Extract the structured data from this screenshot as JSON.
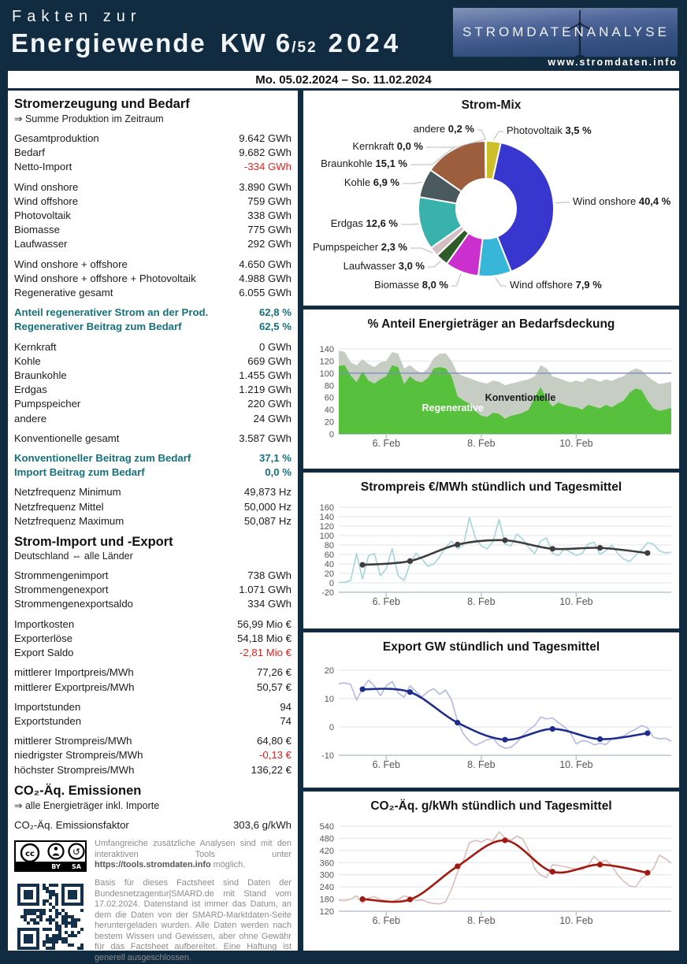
{
  "page": {
    "frame_color": "#112b40",
    "accent_teal": "#16717c",
    "negative_red": "#e8211d"
  },
  "header": {
    "title_line1": "Fakten zur",
    "title_line2": "Energiewende",
    "kw": "KW 6",
    "kw_denominator": "/52",
    "year": "2024",
    "logo_left": "STROMDATEN",
    "logo_right": "ANALYSE",
    "logo_url": "www.stromdaten.info"
  },
  "date_bar": {
    "text": "Mo. 05.02.2024 – So. 11.02.2024"
  },
  "left_panel": {
    "sections": [
      {
        "title": "Stromerzeugung und Bedarf",
        "subtitle": "⇒ Summe Produktion im Zeitraum",
        "groups": [
          [
            {
              "l": "Gesamtproduktion",
              "v": "9.642 GWh"
            },
            {
              "l": "Bedarf",
              "v": "9.682 GWh"
            },
            {
              "l": "Netto-Import",
              "v": "-334 GWh",
              "c": "red"
            }
          ],
          [
            {
              "l": "Wind onshore",
              "v": "3.890 GWh"
            },
            {
              "l": "Wind offshore",
              "v": "759 GWh"
            },
            {
              "l": "Photovoltaik",
              "v": "338 GWh"
            },
            {
              "l": "Biomasse",
              "v": "775 GWh"
            },
            {
              "l": "Laufwasser",
              "v": "292 GWh"
            }
          ],
          [
            {
              "l": "Wind onshore + offshore",
              "v": "4.650 GWh"
            },
            {
              "l": "Wind onshore + offshore + Photovoltaik",
              "v": "4.988 GWh"
            },
            {
              "l": "Regenerative gesamt",
              "v": "6.055 GWh"
            }
          ],
          [
            {
              "l": "Anteil regenerativer Strom an der Prod.",
              "v": "62,8 %",
              "c": "teal"
            },
            {
              "l": "Regenerativer Beitrag zum Bedarf",
              "v": "62,5 %",
              "c": "teal"
            }
          ],
          [
            {
              "l": "Kernkraft",
              "v": "0 GWh"
            },
            {
              "l": "Kohle",
              "v": "669 GWh"
            },
            {
              "l": "Braunkohle",
              "v": "1.455 GWh"
            },
            {
              "l": "Erdgas",
              "v": "1.219 GWh"
            },
            {
              "l": "Pumpspeicher",
              "v": "220 GWh"
            },
            {
              "l": "andere",
              "v": "24 GWh"
            }
          ],
          [
            {
              "l": "Konventionelle gesamt",
              "v": "3.587 GWh"
            }
          ],
          [
            {
              "l": "Konventioneller Beitrag zum Bedarf",
              "v": "37,1 %",
              "c": "teal"
            },
            {
              "l": "Import Beitrag zum Bedarf",
              "v": "0,0 %",
              "c": "teal"
            }
          ],
          [
            {
              "l": "Netzfrequenz Minimum",
              "v": "49,873 Hz"
            },
            {
              "l": "Netzfrequenz Mittel",
              "v": "50,000 Hz"
            },
            {
              "l": "Netzfrequenz Maximum",
              "v": "50,087 Hz"
            }
          ]
        ]
      },
      {
        "title": "Strom-Import und -Export",
        "subtitle": "Deutschland ⇔ alle Länder",
        "groups": [
          [
            {
              "l": "Strommengenimport",
              "v": "738 GWh"
            },
            {
              "l": "Strommengenexport",
              "v": "1.071 GWh"
            },
            {
              "l": "Strommengenexportsaldo",
              "v": "334 GWh"
            }
          ],
          [
            {
              "l": "Importkosten",
              "v": "56,99 Mio €"
            },
            {
              "l": "Exporterlöse",
              "v": "54,18 Mio €"
            },
            {
              "l": "Export Saldo",
              "v": "-2,81 Mio €",
              "c": "red"
            }
          ],
          [
            {
              "l": "mittlerer Importpreis/MWh",
              "v": "77,26 €"
            },
            {
              "l": "mittlerer Exportpreis/MWh",
              "v": "50,57 €"
            }
          ],
          [
            {
              "l": "Importstunden",
              "v": "94"
            },
            {
              "l": "Exportstunden",
              "v": "74"
            }
          ],
          [
            {
              "l": "mittlerer Strompreis/MWh",
              "v": "64,80 €"
            },
            {
              "l": "niedrigster Strompreis/MWh",
              "v": "-0,13 €",
              "c": "red"
            },
            {
              "l": "höchster Strompreis/MWh",
              "v": "136,22 €"
            }
          ]
        ]
      },
      {
        "title": "CO₂-Äq. Emissionen",
        "subtitle": "⇒ alle Energieträger inkl. Importe",
        "groups": [
          [
            {
              "l": "CO₂-Äq. Emissionsfaktor",
              "v": "303,6 g/kWh"
            }
          ]
        ]
      }
    ],
    "license": {
      "by": "BY",
      "sa": "SA",
      "cc": "cc"
    },
    "footnotes": {
      "tools_pre": "Umfangreiche zusätzliche Analysen sind mit den interaktiven Tools unter ",
      "tools_link": "https://tools.stromdaten.info",
      "tools_post": " möglich.",
      "basis": "Basis für dieses Factsheet sind Daten der Bundesnetzagentur|SMARD.de mit Stand vom 17.02.2024. Datenstand ist immer das Datum, an dem die Daten von der SMARD-Marktdaten-Seite heruntergeladen wurden. Alle Daten werden nach bestem Wissen und Gewissen, aber ohne Gewähr für das Factsheet aufbereitet. Eine Haftung ist generell ausgeschlossen."
    }
  },
  "chart_data": [
    {
      "type": "pie",
      "title": "Strom-Mix",
      "donut": true,
      "slices": [
        {
          "name": "Photovoltaik",
          "pct_label": "3,5 %",
          "value": 3.5,
          "color": "#cdbe2b"
        },
        {
          "name": "Wind onshore",
          "pct_label": "40,4 %",
          "value": 40.4,
          "color": "#3737cf"
        },
        {
          "name": "Wind offshore",
          "pct_label": "7,9 %",
          "value": 7.9,
          "color": "#38b6d8"
        },
        {
          "name": "Biomasse",
          "pct_label": "8,0 %",
          "value": 8.0,
          "color": "#cb30cf"
        },
        {
          "name": "Laufwasser",
          "pct_label": "3,0 %",
          "value": 3.0,
          "color": "#2e5c28"
        },
        {
          "name": "Pumpspeicher",
          "pct_label": "2,3 %",
          "value": 2.3,
          "color": "#d5bec3"
        },
        {
          "name": "Erdgas",
          "pct_label": "12,6 %",
          "value": 12.6,
          "color": "#38b2aa"
        },
        {
          "name": "Kohle",
          "pct_label": "6,9 %",
          "value": 6.9,
          "color": "#4a595d"
        },
        {
          "name": "Braunkohle",
          "pct_label": "15,1 %",
          "value": 15.1,
          "color": "#9c5e3d"
        },
        {
          "name": "Kernkraft",
          "pct_label": "0,0 %",
          "value": 0.0,
          "color": "#888888"
        },
        {
          "name": "andere",
          "pct_label": "0,2 %",
          "value": 0.2,
          "color": "#8a8a60"
        }
      ]
    },
    {
      "type": "area",
      "title": "% Anteil Energieträger an Bedarfsdeckung",
      "x_ticks": [
        "6. Feb",
        "8. Feb",
        "10. Feb"
      ],
      "ylim": [
        0,
        140
      ],
      "ystep": 20,
      "ref_line": 100,
      "grid": true,
      "legend_inline": true,
      "labels": {
        "regenerative": "Regenerative",
        "konventionelle": "Konventionelle"
      },
      "colors": {
        "regenerative": "#57c03c",
        "konventionelle": "#c6cdc2",
        "ref_line": "#7f8ac4"
      },
      "regenerative": [
        112,
        113,
        96,
        85,
        103,
        88,
        83,
        90,
        95,
        113,
        110,
        82,
        95,
        87,
        85,
        92,
        108,
        110,
        108,
        95,
        62,
        55,
        50,
        38,
        30,
        28,
        35,
        33,
        25,
        30,
        32,
        35,
        40,
        60,
        77,
        58,
        45,
        52,
        48,
        45,
        44,
        40,
        48,
        45,
        42,
        48,
        44,
        50,
        55,
        68,
        75,
        72,
        55,
        42,
        38,
        40,
        43
      ],
      "total": [
        137,
        135,
        118,
        113,
        123,
        115,
        110,
        118,
        120,
        135,
        132,
        108,
        113,
        105,
        100,
        108,
        125,
        132,
        133,
        120,
        100,
        95,
        92,
        88,
        85,
        83,
        88,
        86,
        80,
        83,
        85,
        88,
        90,
        95,
        113,
        108,
        95,
        92,
        88,
        85,
        88,
        85,
        92,
        90,
        86,
        90,
        87,
        92,
        95,
        103,
        108,
        105,
        95,
        88,
        82,
        84,
        86
      ]
    },
    {
      "type": "line",
      "title": "Strompreis €/MWh stündlich und Tagesmittel",
      "x_ticks": [
        "6. Feb",
        "8. Feb",
        "10. Feb"
      ],
      "ylim": [
        -20,
        160
      ],
      "ystep": 20,
      "grid": true,
      "colors": {
        "hourly": "#a5d5da",
        "daily": "#3d3d3d"
      },
      "hourly": [
        1,
        1,
        5,
        62,
        8,
        57,
        62,
        15,
        30,
        72,
        15,
        5,
        40,
        63,
        50,
        35,
        40,
        55,
        75,
        88,
        72,
        80,
        138,
        95,
        78,
        72,
        88,
        134,
        82,
        78,
        103,
        92,
        75,
        62,
        88,
        95,
        62,
        58,
        72,
        65,
        58,
        62,
        82,
        86,
        60,
        68,
        80,
        62,
        50,
        45,
        58,
        70,
        85,
        82,
        68,
        63,
        65
      ],
      "daily": [
        38,
        46,
        81,
        90,
        72,
        74,
        63
      ]
    },
    {
      "type": "line",
      "title": "Export GW stündlich und Tagesmittel",
      "x_ticks": [
        "6. Feb",
        "8. Feb",
        "10. Feb"
      ],
      "ylim": [
        -10,
        20
      ],
      "ystep": 10,
      "grid": true,
      "colors": {
        "hourly": "#b3b8e6",
        "daily": "#1f2d8c"
      },
      "hourly": [
        15.3,
        15.5,
        15.0,
        9.5,
        13.5,
        16.5,
        14.5,
        11.0,
        14.5,
        16.0,
        12.0,
        10.5,
        14.5,
        12.5,
        10.5,
        12.5,
        13.5,
        11.5,
        13.0,
        9.5,
        2.0,
        -2.5,
        -5.0,
        -6.5,
        -5.5,
        -4.5,
        -4.0,
        -6.5,
        -7.5,
        -7.2,
        -5.5,
        -3.0,
        -1.0,
        0.5,
        3.5,
        2.8,
        3.2,
        1.5,
        0.0,
        -2.0,
        -6.0,
        -4.8,
        -5.2,
        -6.3,
        -5.8,
        -6.2,
        -4.2,
        -3.6,
        -3.2,
        -1.8,
        -0.8,
        0.5,
        -0.3,
        -3.6,
        -4.2,
        -4.0,
        -5.0
      ],
      "daily": [
        13.3,
        12.3,
        1.5,
        -4.5,
        -0.7,
        -4.3,
        -2.2
      ]
    },
    {
      "type": "line",
      "title": "CO₂-Äq. g/kWh stündlich und Tagesmittel",
      "x_ticks": [
        "6. Feb",
        "8. Feb",
        "10. Feb"
      ],
      "ylim": [
        120,
        540
      ],
      "ystep": 60,
      "grid": true,
      "colors": {
        "hourly": "#d9beba",
        "daily": "#a11a12"
      },
      "hourly": [
        175,
        172,
        180,
        196,
        160,
        186,
        192,
        178,
        172,
        168,
        178,
        196,
        186,
        172,
        176,
        164,
        158,
        156,
        166,
        230,
        312,
        372,
        458,
        470,
        462,
        476,
        468,
        512,
        482,
        470,
        492,
        476,
        420,
        330,
        298,
        286,
        350,
        346,
        340,
        334,
        328,
        324,
        346,
        392,
        362,
        372,
        346,
        298,
        268,
        244,
        240,
        282,
        302,
        332,
        396,
        380,
        356
      ],
      "daily": [
        180,
        178,
        342,
        470,
        315,
        350,
        310
      ]
    }
  ]
}
